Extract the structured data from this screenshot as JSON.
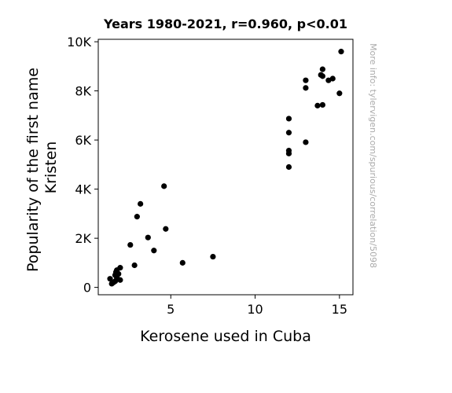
{
  "chart_data": {
    "type": "scatter",
    "title": "Years 1980-2021, r=0.960, p<0.01",
    "xlabel": "Kerosene used in Cuba",
    "ylabel_lines": [
      "Popularity of the first name",
      "Kristen"
    ],
    "side_note": "More info: tylervigen.com/spurious/correlation/5098",
    "xlim": [
      0.7,
      15.8
    ],
    "ylim": [
      -300,
      10100
    ],
    "x_ticks": [
      5,
      10,
      15
    ],
    "y_ticks": [
      {
        "value": 0,
        "label": "0"
      },
      {
        "value": 2000,
        "label": "2K"
      },
      {
        "value": 4000,
        "label": "4K"
      },
      {
        "value": 6000,
        "label": "6K"
      },
      {
        "value": 8000,
        "label": "8K"
      },
      {
        "value": 10000,
        "label": "10K"
      }
    ],
    "grid": false,
    "marker_color": "#000000",
    "points": [
      {
        "x": 1.4,
        "y": 350
      },
      {
        "x": 1.5,
        "y": 150
      },
      {
        "x": 1.6,
        "y": 200
      },
      {
        "x": 1.7,
        "y": 250
      },
      {
        "x": 1.7,
        "y": 500
      },
      {
        "x": 1.75,
        "y": 620
      },
      {
        "x": 1.8,
        "y": 700
      },
      {
        "x": 1.8,
        "y": 400
      },
      {
        "x": 1.9,
        "y": 550
      },
      {
        "x": 2.0,
        "y": 300
      },
      {
        "x": 2.0,
        "y": 800
      },
      {
        "x": 2.6,
        "y": 1730
      },
      {
        "x": 2.85,
        "y": 900
      },
      {
        "x": 3.0,
        "y": 2880
      },
      {
        "x": 3.2,
        "y": 3400
      },
      {
        "x": 3.65,
        "y": 2030
      },
      {
        "x": 4.0,
        "y": 1500
      },
      {
        "x": 4.6,
        "y": 4120
      },
      {
        "x": 4.7,
        "y": 2380
      },
      {
        "x": 5.7,
        "y": 1000
      },
      {
        "x": 7.5,
        "y": 1250
      },
      {
        "x": 12.0,
        "y": 6870
      },
      {
        "x": 12.0,
        "y": 6300
      },
      {
        "x": 12.0,
        "y": 5570
      },
      {
        "x": 12.0,
        "y": 5450
      },
      {
        "x": 12.0,
        "y": 4900
      },
      {
        "x": 13.0,
        "y": 8430
      },
      {
        "x": 13.0,
        "y": 8120
      },
      {
        "x": 13.0,
        "y": 5910
      },
      {
        "x": 13.7,
        "y": 7400
      },
      {
        "x": 13.9,
        "y": 8650
      },
      {
        "x": 14.0,
        "y": 8880
      },
      {
        "x": 14.0,
        "y": 8600
      },
      {
        "x": 14.0,
        "y": 7430
      },
      {
        "x": 14.35,
        "y": 8430
      },
      {
        "x": 14.6,
        "y": 8500
      },
      {
        "x": 15.0,
        "y": 7900
      },
      {
        "x": 15.1,
        "y": 9600
      }
    ]
  }
}
